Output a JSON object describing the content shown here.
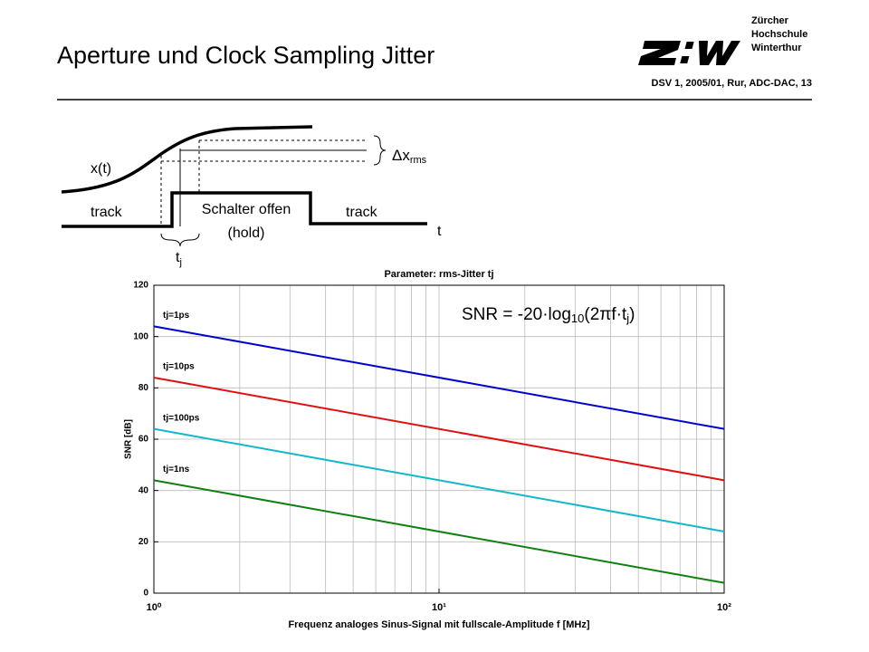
{
  "header": {
    "title": "Aperture und Clock Sampling Jitter",
    "institution": [
      "Zürcher",
      "Hochschule",
      "Winterthur"
    ],
    "footer": "DSV 1, 2005/01, Rur, ADC-DAC, 13"
  },
  "diagram": {
    "signal": "x(t)",
    "track_left": "track",
    "hold": [
      "Schalter offen",
      "(hold)"
    ],
    "track_right": "track",
    "time": "t",
    "delta": [
      "Δx",
      "rms"
    ],
    "jitter": [
      "t",
      "j"
    ]
  },
  "chart_data": {
    "type": "line",
    "title": "Parameter: rms-Jitter tj",
    "xlabel": "Frequenz analoges Sinus-Signal mit fullscale-Amplitude f [MHz]",
    "ylabel": "SNR [dB]",
    "annotation": [
      "SNR = -20·log",
      "10",
      "(2πf·t",
      "j",
      ")"
    ],
    "x": [
      1,
      100
    ],
    "xscale": "log",
    "series": [
      {
        "name": "tj=1ps",
        "color": "#0000cc",
        "values": [
          104,
          64
        ]
      },
      {
        "name": "tj=10ps",
        "color": "#e01010",
        "values": [
          84,
          44
        ]
      },
      {
        "name": "tj=100ps",
        "color": "#10b8c8",
        "values": [
          64,
          24
        ]
      },
      {
        "name": "tj=1ns",
        "color": "#108010",
        "values": [
          44,
          4
        ]
      }
    ],
    "xlim": [
      1,
      100
    ],
    "xticks": [
      {
        "value": 1,
        "label": "10⁰"
      },
      {
        "value": 10,
        "label": "10¹"
      },
      {
        "value": 100,
        "label": "10²"
      }
    ],
    "xminorticks": [
      2,
      3,
      4,
      5,
      6,
      7,
      8,
      9,
      20,
      30,
      40,
      50,
      60,
      70,
      80,
      90
    ],
    "ylim": [
      0,
      120
    ],
    "yticks": [
      0,
      20,
      40,
      60,
      80,
      100,
      120
    ],
    "grid": true
  }
}
